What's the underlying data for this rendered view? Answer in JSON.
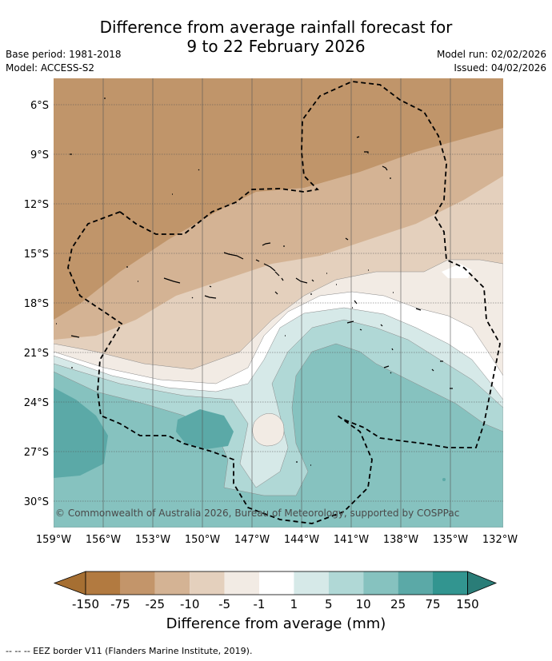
{
  "title_line1": "Difference from average rainfall forecast for",
  "title_line2": "9 to 22 February 2026",
  "base_period": "Base period: 1981-2018",
  "model": "Model: ACCESS-S2",
  "model_run": "Model run: 02/02/2026",
  "issued": "Issued: 04/02/2026",
  "copyright": "© Commonwealth of Australia 2026, Bureau of Meteorology, supported by COSPPac",
  "x_ticks": [
    "159°W",
    "156°W",
    "153°W",
    "150°W",
    "147°W",
    "144°W",
    "141°W",
    "138°W",
    "135°W",
    "132°W"
  ],
  "y_ticks": [
    "6°S",
    "9°S",
    "12°S",
    "15°S",
    "18°S",
    "21°S",
    "24°S",
    "27°S",
    "30°S"
  ],
  "colorbar": {
    "labels": [
      "-150",
      "-75",
      "-25",
      "-10",
      "-5",
      "-1",
      "1",
      "5",
      "10",
      "25",
      "75",
      "150"
    ],
    "colors": [
      "#a66f32",
      "#b27a40",
      "#c3956a",
      "#d4b394",
      "#e4d0bd",
      "#f2ebe4",
      "#ffffff",
      "#d6e9e8",
      "#b0d8d6",
      "#86c2bf",
      "#5ba9a7",
      "#329590",
      "#2a7d78"
    ],
    "title": "Difference from average (mm)"
  },
  "footnote": "--  --  -- EEZ border V11 (Flanders Marine Institute, 2019).",
  "map_colors": {
    "deep_dry": "#c0956a",
    "dry": "#d4b394",
    "mild_dry": "#e4d0bd",
    "near_dry": "#f2ebe4",
    "neutral": "#ffffff",
    "near_wet": "#d6e9e8",
    "mild_wet": "#b0d8d6",
    "wet": "#86c2bf",
    "very_wet": "#5ba9a7"
  }
}
